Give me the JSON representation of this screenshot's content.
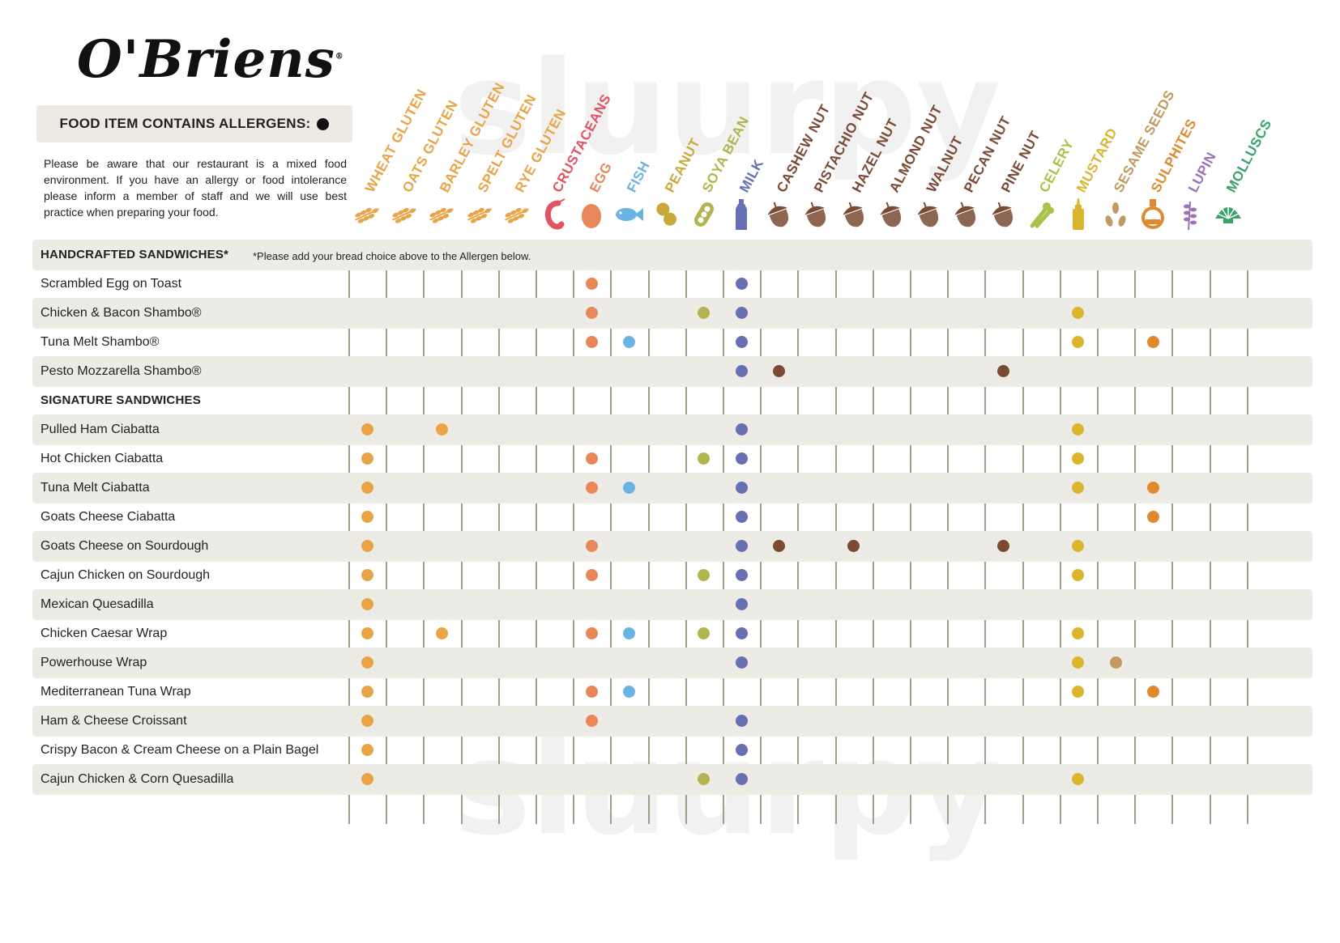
{
  "logo": {
    "text": "O'Briens",
    "mark": "®"
  },
  "legend": {
    "label": "FOOD ITEM CONTAINS ALLERGENS:"
  },
  "notice": "Please be aware that our restaurant is a mixed food environment. If you have an allergy or food intolerance please inform a member of staff and we will use best practice when preparing your food.",
  "allergens": [
    {
      "label": "WHEAT GLUTEN",
      "color": "#e9a447",
      "icon": "wheat-icon"
    },
    {
      "label": "OATS GLUTEN",
      "color": "#e9a447",
      "icon": "wheat-icon"
    },
    {
      "label": "BARLEY GLUTEN",
      "color": "#e9a447",
      "icon": "wheat-icon"
    },
    {
      "label": "SPELT GLUTEN",
      "color": "#e9a447",
      "icon": "wheat-icon"
    },
    {
      "label": "RYE GLUTEN",
      "color": "#e9a447",
      "icon": "wheat-icon"
    },
    {
      "label": "CRUSTACEANS",
      "color": "#e05464",
      "icon": "shrimp-icon"
    },
    {
      "label": "EGG",
      "color": "#e8875a",
      "icon": "egg-icon"
    },
    {
      "label": "FISH",
      "color": "#6ab4e3",
      "icon": "fish-icon"
    },
    {
      "label": "PEANUT",
      "color": "#c9a93a",
      "icon": "peanut-icon"
    },
    {
      "label": "SOYA BEAN",
      "color": "#b2b54f",
      "icon": "soya-bean-icon"
    },
    {
      "label": "MILK",
      "color": "#6670b2",
      "icon": "milk-bottle-icon"
    },
    {
      "label": "CASHEW NUT",
      "color": "#7a4a33",
      "icon": "nut-icon"
    },
    {
      "label": "PISTACHIO NUT",
      "color": "#7a4a33",
      "icon": "nut-icon"
    },
    {
      "label": "HAZEL NUT",
      "color": "#7a4a33",
      "icon": "nut-icon"
    },
    {
      "label": "ALMOND NUT",
      "color": "#7a4a33",
      "icon": "nut-icon"
    },
    {
      "label": "WALNUT",
      "color": "#7a4a33",
      "icon": "nut-icon"
    },
    {
      "label": "PECAN NUT",
      "color": "#7a4a33",
      "icon": "nut-icon"
    },
    {
      "label": "PINE NUT",
      "color": "#7a4a33",
      "icon": "nut-icon"
    },
    {
      "label": "CELERY",
      "color": "#a9c24a",
      "icon": "celery-icon"
    },
    {
      "label": "MUSTARD",
      "color": "#d9b62e",
      "icon": "mustard-bottle-icon"
    },
    {
      "label": "SESAME SEEDS",
      "color": "#c19a62",
      "icon": "sesame-icon"
    },
    {
      "label": "SULPHITES",
      "color": "#e08a2e",
      "icon": "flask-icon"
    },
    {
      "label": "LUPIN",
      "color": "#9a72b8",
      "icon": "lupin-icon"
    },
    {
      "label": "MOLLUSCS",
      "color": "#3aa36a",
      "icon": "shell-icon"
    }
  ],
  "rows": [
    {
      "type": "section",
      "name": "HANDCRAFTED SANDWICHES*",
      "note": "*Please add your bread choice above to the Allergen below."
    },
    {
      "name": "Scrambled Egg on Toast",
      "allergens": [
        6,
        10
      ]
    },
    {
      "name": "Chicken & Bacon Shambo®",
      "allergens": [
        6,
        9,
        10,
        19
      ]
    },
    {
      "name": "Tuna Melt Shambo®",
      "allergens": [
        6,
        7,
        10,
        19,
        21
      ]
    },
    {
      "name": "Pesto Mozzarella Shambo®",
      "allergens": [
        10,
        11,
        17
      ]
    },
    {
      "type": "section",
      "name": "SIGNATURE SANDWICHES",
      "note": ""
    },
    {
      "name": "Pulled Ham Ciabatta",
      "allergens": [
        0,
        2,
        10,
        19
      ]
    },
    {
      "name": "Hot Chicken Ciabatta",
      "allergens": [
        0,
        6,
        9,
        10,
        19
      ]
    },
    {
      "name": "Tuna Melt Ciabatta",
      "allergens": [
        0,
        6,
        7,
        10,
        19,
        21
      ]
    },
    {
      "name": "Goats Cheese Ciabatta",
      "allergens": [
        0,
        10,
        21
      ]
    },
    {
      "name": "Goats Cheese on Sourdough",
      "allergens": [
        0,
        6,
        10,
        11,
        13,
        17,
        19
      ]
    },
    {
      "name": "Cajun Chicken on Sourdough",
      "allergens": [
        0,
        6,
        9,
        10,
        19
      ]
    },
    {
      "name": "Mexican Quesadilla",
      "allergens": [
        0,
        10
      ]
    },
    {
      "name": "Chicken Caesar Wrap",
      "allergens": [
        0,
        2,
        6,
        7,
        9,
        10,
        19
      ]
    },
    {
      "name": "Powerhouse Wrap",
      "allergens": [
        0,
        10,
        19,
        20
      ]
    },
    {
      "name": "Mediterranean Tuna Wrap",
      "allergens": [
        0,
        6,
        7,
        19,
        21
      ]
    },
    {
      "name": "Ham & Cheese Croissant",
      "allergens": [
        0,
        6,
        10
      ]
    },
    {
      "name": "Crispy Bacon & Cream Cheese on a Plain Bagel",
      "allergens": [
        0,
        10
      ]
    },
    {
      "name": "Cajun Chicken & Corn Quesadilla",
      "allergens": [
        0,
        9,
        10,
        19
      ]
    }
  ]
}
